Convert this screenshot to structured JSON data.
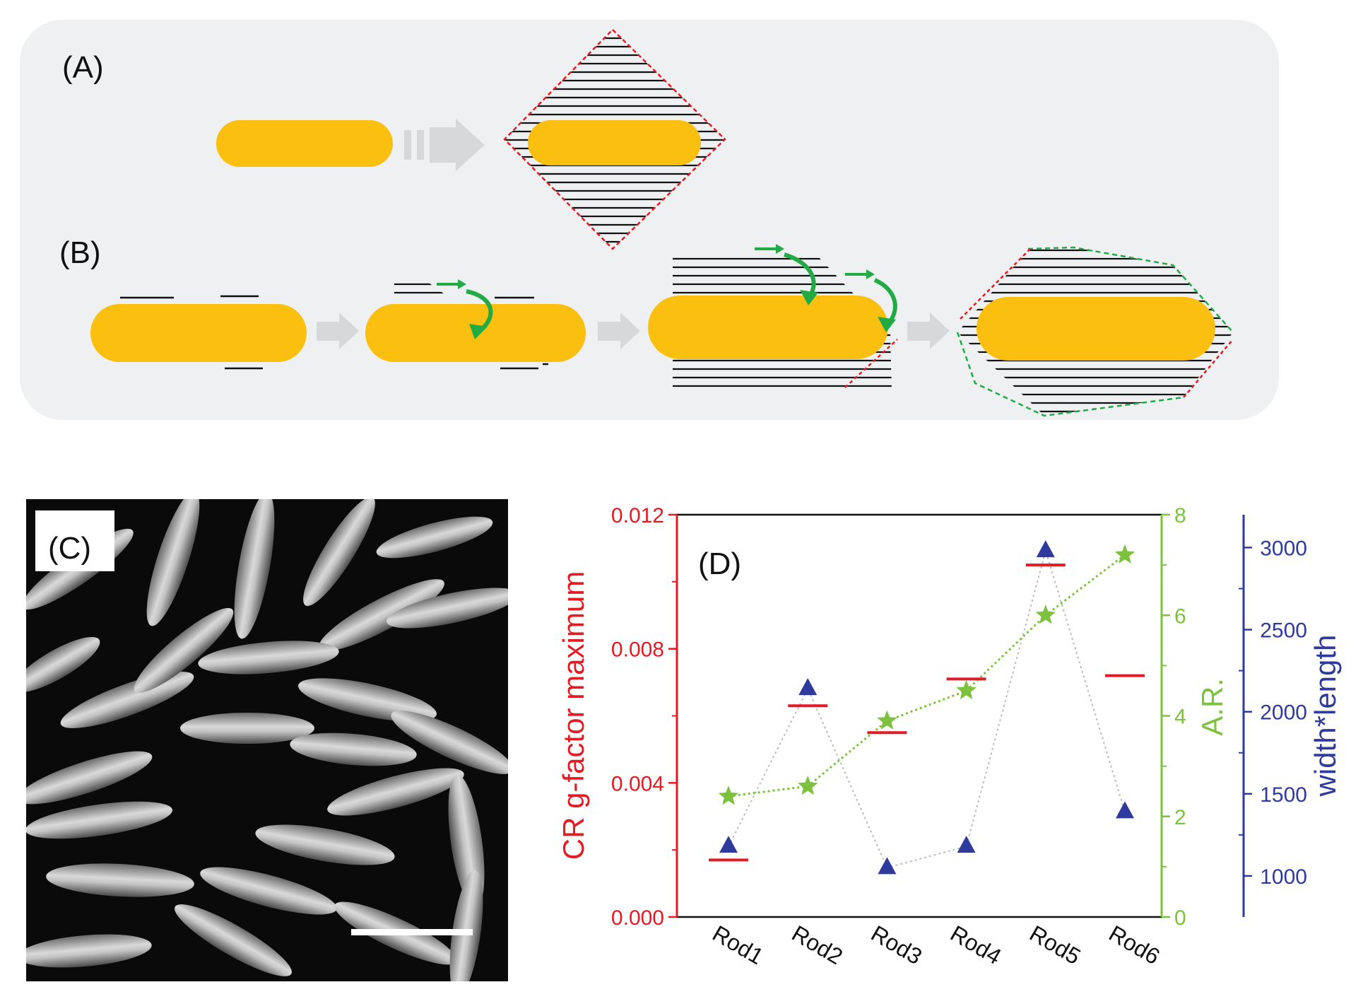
{
  "panels": {
    "a_label": "(A)",
    "b_label": "(B)",
    "c_label": "(C)",
    "d_label": "(D)"
  },
  "colors": {
    "rod": "#fbbf10",
    "panel_bg": "#eef0f1",
    "red": "#e31b23",
    "green": "#7cc23f",
    "blue": "#2e3a9c",
    "arrow": "#d6d8d9",
    "curl_arrow": "#22aa44"
  },
  "chart_data": {
    "type": "scatter",
    "categories": [
      "Rod1",
      "Rod2",
      "Rod3",
      "Rod4",
      "Rod5",
      "Rod6"
    ],
    "series": [
      {
        "axis": "left",
        "marker": "dash",
        "color": "#e31b23",
        "values": [
          0.0017,
          0.0063,
          0.0055,
          0.0071,
          0.0105,
          0.0072
        ]
      },
      {
        "axis": "right1",
        "marker": "star",
        "color": "#7cc23f",
        "line": "dotted",
        "values": [
          2.4,
          2.6,
          3.9,
          4.5,
          6.0,
          7.2
        ]
      },
      {
        "axis": "right2",
        "marker": "triangle",
        "color": "#2e3a9c",
        "line": "dotted",
        "values": [
          1180,
          2140,
          1050,
          1180,
          2980,
          1390
        ]
      }
    ],
    "axes": {
      "left": {
        "label": "CR g-factor maximum",
        "ylim": [
          0,
          0.012
        ],
        "ticks": [
          "0.000",
          "0.004",
          "0.008",
          "0.012"
        ]
      },
      "right1": {
        "label": "A.R.",
        "ylim": [
          0,
          8
        ],
        "ticks": [
          "0",
          "2",
          "4",
          "6",
          "8"
        ]
      },
      "right2": {
        "label": "width*length",
        "ylim": [
          750,
          3200
        ],
        "ticks": [
          "1000",
          "1500",
          "2000",
          "2500",
          "3000"
        ]
      }
    },
    "grid": false
  }
}
